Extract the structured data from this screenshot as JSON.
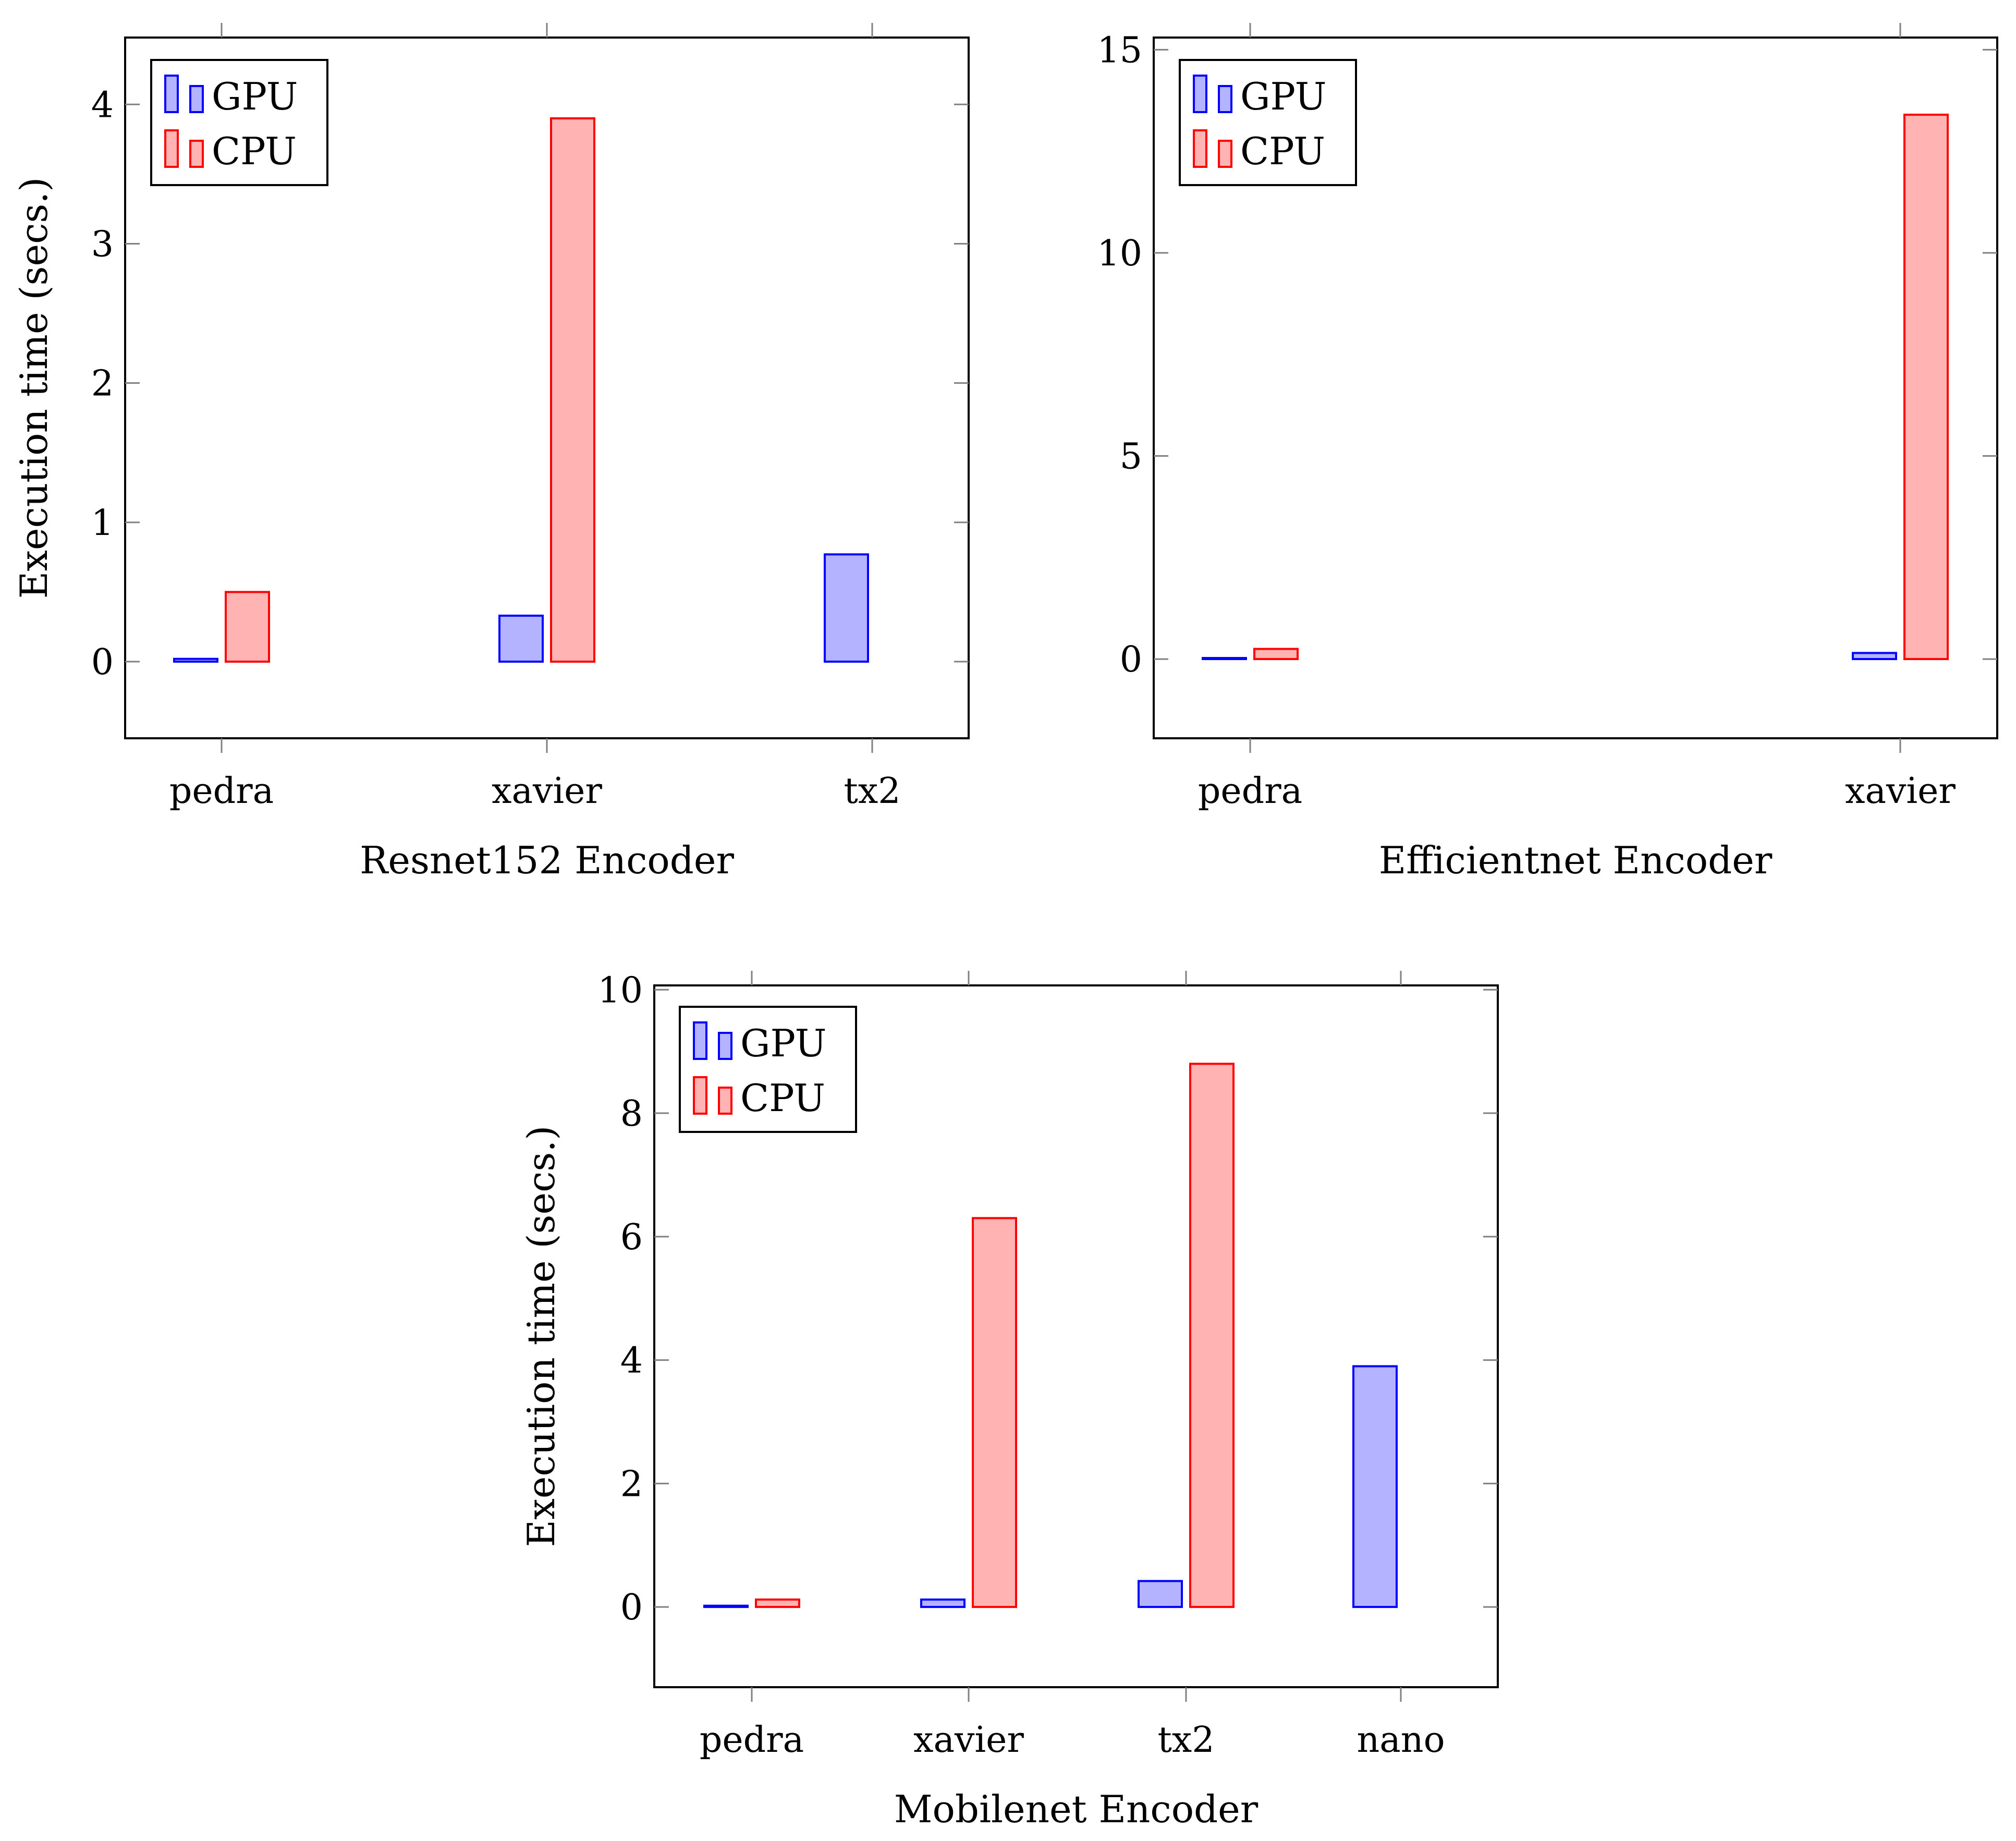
{
  "colors": {
    "gpu_stroke": "#0000ff",
    "gpu_fill": "#b3b3ff",
    "cpu_stroke": "#ff0000",
    "cpu_fill": "#ffb3b3"
  },
  "legend": [
    "GPU",
    "CPU"
  ],
  "chart_data": [
    {
      "type": "bar",
      "title": "",
      "xlabel": "Resnet152 Encoder",
      "ylabel": "Execution time (secs.)",
      "categories": [
        "pedra",
        "xavier",
        "tx2"
      ],
      "series": [
        {
          "name": "GPU",
          "values": [
            0.02,
            0.33,
            0.77
          ]
        },
        {
          "name": "CPU",
          "values": [
            0.5,
            3.9,
            null
          ]
        }
      ],
      "ylim": [
        -0.55,
        4.48
      ],
      "yticks": [
        0,
        1,
        2,
        3,
        4
      ],
      "legend_position": "top-left"
    },
    {
      "type": "bar",
      "title": "",
      "xlabel": "Efficientnet Encoder",
      "ylabel": "",
      "categories": [
        "pedra",
        "xavier"
      ],
      "series": [
        {
          "name": "GPU",
          "values": [
            0.02,
            0.15
          ]
        },
        {
          "name": "CPU",
          "values": [
            0.25,
            13.4
          ]
        }
      ],
      "ylim": [
        -1.95,
        15.3
      ],
      "yticks": [
        0,
        5,
        10,
        15
      ],
      "legend_position": "top-left"
    },
    {
      "type": "bar",
      "title": "",
      "xlabel": "Mobilenet Encoder",
      "ylabel": "Execution time (secs.)",
      "categories": [
        "pedra",
        "xavier",
        "tx2",
        "nano"
      ],
      "series": [
        {
          "name": "GPU",
          "values": [
            0.02,
            0.12,
            0.42,
            3.9
          ]
        },
        {
          "name": "CPU",
          "values": [
            0.12,
            6.3,
            8.8,
            null
          ]
        }
      ],
      "ylim": [
        -1.3,
        10.07
      ],
      "yticks": [
        0,
        2,
        4,
        6,
        8,
        10
      ],
      "legend_position": "top-left"
    }
  ]
}
